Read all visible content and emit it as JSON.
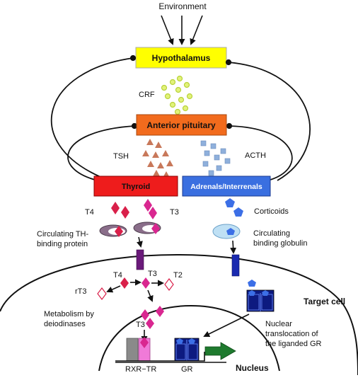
{
  "labels": {
    "environment": "Environment",
    "hypothalamus": "Hypothalamus",
    "crf": "CRF",
    "anterior_pituitary": "Anterior pituitary",
    "tsh": "TSH",
    "acth": "ACTH",
    "thyroid": "Thyroid",
    "adrenals": "Adrenals/Interrenals",
    "t4_top": "T4",
    "t3_top": "T3",
    "corticoids": "Corticoids",
    "circ_th_line1": "Circulating TH-",
    "circ_th_line2": "binding protein",
    "circ_bg_line1": "Circulating",
    "circ_bg_line2": "binding globulin",
    "t4_cell": "T4",
    "t3_cell": "T3",
    "t2": "T2",
    "rt3": "rT3",
    "metab_line1": "Metabolism by",
    "metab_line2": "deiodinases",
    "t3_nuc": "T3",
    "target_cell": "Target cell",
    "nuc_trans_line1": "Nuclear",
    "nuc_trans_line2": "translocation of",
    "nuc_trans_line3": "the liganded GR",
    "rxr_tr": "RXR−TR",
    "gr": "GR",
    "nucleus": "Nucleus"
  },
  "colors": {
    "hypothalamus": "#ffff00",
    "pituitary": "#f26b1d",
    "thyroid": "#ee1c1c",
    "adrenals": "#3a6fe0",
    "crf_dots": "#c8e04a",
    "tsh_triangles": "#c8785a",
    "acth_squares": "#7fa6d6",
    "t4_diamond": "#d9204a",
    "t3_diamond": "#d92790",
    "corticoid": "#3c6fe6",
    "receptor_purple": "#6a1a7a",
    "receptor_blue": "#1a2ab0",
    "gr_dark": "#0d1a80",
    "rxr_gray": "#8a8a8a",
    "tr_pink": "#f07ad8",
    "arrow_green": "#1e7a2e"
  }
}
